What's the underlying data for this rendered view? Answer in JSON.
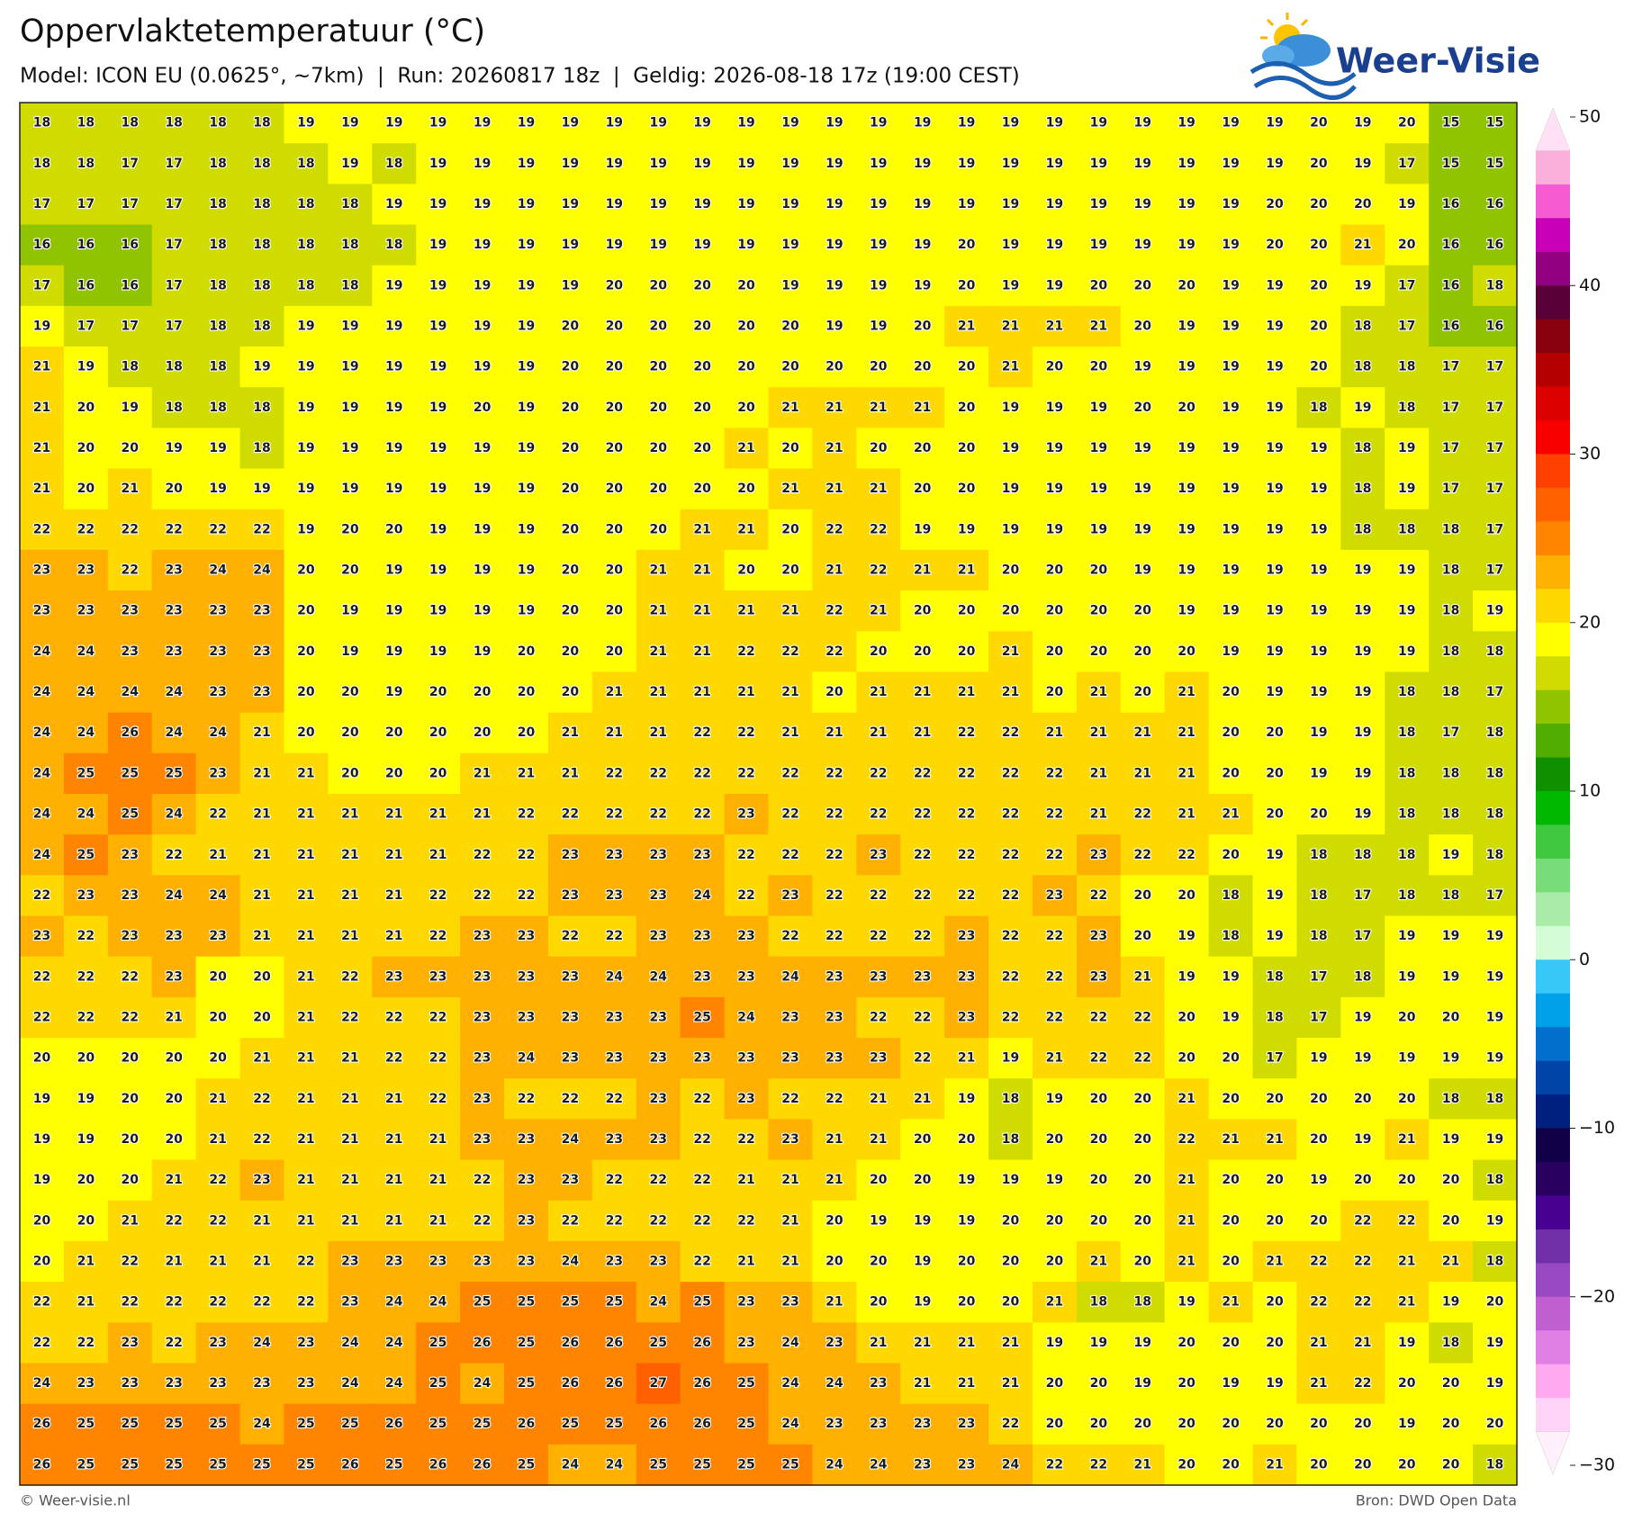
{
  "header": {
    "title": "Oppervlaktetemperatuur (°C)",
    "subtitle": "Model: ICON EU (0.0625°, ~7km)  |  Run: 20260817 18z  |  Geldig: 2026-08-18 17z (19:00 CEST)"
  },
  "logo": "Weer-Visie",
  "map": {
    "grid": [
      [
        18,
        18,
        18,
        18,
        18,
        18,
        19,
        19,
        19,
        19,
        19,
        19,
        19,
        19,
        19,
        19,
        19,
        19,
        19,
        19,
        19,
        19,
        19,
        19,
        19,
        19,
        19,
        19,
        19,
        20,
        19,
        20,
        15,
        15
      ],
      [
        18,
        18,
        17,
        17,
        18,
        18,
        18,
        19,
        18,
        19,
        19,
        19,
        19,
        19,
        19,
        19,
        19,
        19,
        19,
        19,
        19,
        19,
        19,
        19,
        19,
        19,
        19,
        19,
        19,
        20,
        19,
        17,
        15,
        15
      ],
      [
        17,
        17,
        17,
        17,
        18,
        18,
        18,
        18,
        19,
        19,
        19,
        19,
        19,
        19,
        19,
        19,
        19,
        19,
        19,
        19,
        19,
        19,
        19,
        19,
        19,
        19,
        19,
        19,
        20,
        20,
        20,
        19,
        16,
        16
      ],
      [
        16,
        16,
        16,
        17,
        18,
        18,
        18,
        18,
        18,
        19,
        19,
        19,
        19,
        19,
        19,
        19,
        19,
        19,
        19,
        19,
        19,
        20,
        19,
        19,
        19,
        19,
        19,
        19,
        20,
        20,
        21,
        20,
        16,
        16
      ],
      [
        17,
        16,
        16,
        17,
        18,
        18,
        18,
        18,
        19,
        19,
        19,
        19,
        19,
        20,
        20,
        20,
        20,
        19,
        19,
        19,
        19,
        20,
        19,
        19,
        20,
        20,
        20,
        19,
        19,
        20,
        19,
        17,
        16,
        18
      ],
      [
        19,
        17,
        17,
        17,
        18,
        18,
        19,
        19,
        19,
        19,
        19,
        19,
        20,
        20,
        20,
        20,
        20,
        20,
        19,
        19,
        20,
        21,
        21,
        21,
        21,
        20,
        19,
        19,
        19,
        20,
        18,
        17,
        16,
        16
      ],
      [
        21,
        19,
        18,
        18,
        18,
        19,
        19,
        19,
        19,
        19,
        19,
        19,
        20,
        20,
        20,
        20,
        20,
        20,
        20,
        20,
        20,
        20,
        21,
        20,
        20,
        19,
        19,
        19,
        19,
        20,
        18,
        18,
        17,
        17
      ],
      [
        21,
        20,
        19,
        18,
        18,
        18,
        19,
        19,
        19,
        19,
        20,
        19,
        20,
        20,
        20,
        20,
        20,
        21,
        21,
        21,
        21,
        20,
        19,
        19,
        19,
        20,
        20,
        19,
        19,
        18,
        19,
        18,
        17,
        17
      ],
      [
        21,
        20,
        20,
        19,
        19,
        18,
        19,
        19,
        19,
        19,
        19,
        19,
        20,
        20,
        20,
        20,
        21,
        20,
        21,
        20,
        20,
        20,
        19,
        19,
        19,
        19,
        19,
        19,
        19,
        19,
        18,
        19,
        17,
        17
      ],
      [
        21,
        20,
        21,
        20,
        19,
        19,
        19,
        19,
        19,
        19,
        19,
        19,
        20,
        20,
        20,
        20,
        20,
        21,
        21,
        21,
        20,
        20,
        19,
        19,
        19,
        19,
        19,
        19,
        19,
        19,
        18,
        19,
        17,
        17
      ],
      [
        22,
        22,
        22,
        22,
        22,
        22,
        19,
        20,
        20,
        19,
        19,
        19,
        20,
        20,
        20,
        21,
        21,
        20,
        22,
        22,
        19,
        19,
        19,
        19,
        19,
        19,
        19,
        19,
        19,
        19,
        18,
        18,
        18,
        17
      ],
      [
        23,
        23,
        22,
        23,
        24,
        24,
        20,
        20,
        19,
        19,
        19,
        19,
        20,
        20,
        21,
        21,
        20,
        20,
        21,
        22,
        21,
        21,
        20,
        20,
        20,
        19,
        19,
        19,
        19,
        19,
        19,
        19,
        18,
        17
      ],
      [
        23,
        23,
        23,
        23,
        23,
        23,
        20,
        19,
        19,
        19,
        19,
        19,
        20,
        20,
        21,
        21,
        21,
        21,
        22,
        21,
        20,
        20,
        20,
        20,
        20,
        20,
        19,
        19,
        19,
        19,
        19,
        19,
        18,
        19
      ],
      [
        24,
        24,
        23,
        23,
        23,
        23,
        20,
        19,
        19,
        19,
        19,
        20,
        20,
        20,
        21,
        21,
        22,
        22,
        22,
        20,
        20,
        20,
        21,
        20,
        20,
        20,
        20,
        19,
        19,
        19,
        19,
        19,
        18,
        18
      ],
      [
        24,
        24,
        24,
        24,
        23,
        23,
        20,
        20,
        19,
        20,
        20,
        20,
        20,
        21,
        21,
        21,
        21,
        21,
        20,
        21,
        21,
        21,
        21,
        20,
        21,
        20,
        21,
        20,
        19,
        19,
        19,
        18,
        18,
        17
      ],
      [
        24,
        24,
        26,
        24,
        24,
        21,
        20,
        20,
        20,
        20,
        20,
        20,
        21,
        21,
        21,
        22,
        22,
        21,
        21,
        21,
        21,
        22,
        22,
        21,
        21,
        21,
        21,
        20,
        20,
        19,
        19,
        18,
        17,
        18
      ],
      [
        24,
        25,
        25,
        25,
        23,
        21,
        21,
        20,
        20,
        20,
        21,
        21,
        21,
        22,
        22,
        22,
        22,
        22,
        22,
        22,
        22,
        22,
        22,
        22,
        21,
        21,
        21,
        20,
        20,
        19,
        19,
        18,
        18,
        18
      ],
      [
        24,
        24,
        25,
        24,
        22,
        21,
        21,
        21,
        21,
        21,
        21,
        22,
        22,
        22,
        22,
        22,
        23,
        22,
        22,
        22,
        22,
        22,
        22,
        22,
        21,
        22,
        21,
        21,
        20,
        20,
        19,
        18,
        18,
        18
      ],
      [
        24,
        25,
        23,
        22,
        21,
        21,
        21,
        21,
        21,
        21,
        22,
        22,
        23,
        23,
        23,
        23,
        22,
        22,
        22,
        23,
        22,
        22,
        22,
        22,
        23,
        22,
        22,
        20,
        19,
        18,
        18,
        18,
        19,
        18
      ],
      [
        22,
        23,
        23,
        24,
        24,
        21,
        21,
        21,
        21,
        22,
        22,
        22,
        23,
        23,
        23,
        24,
        22,
        23,
        22,
        22,
        22,
        22,
        22,
        23,
        22,
        20,
        20,
        18,
        19,
        18,
        17,
        18,
        18,
        17
      ],
      [
        23,
        22,
        23,
        23,
        23,
        21,
        21,
        21,
        21,
        22,
        23,
        23,
        22,
        22,
        23,
        23,
        23,
        22,
        22,
        22,
        22,
        23,
        22,
        22,
        23,
        20,
        19,
        18,
        19,
        18,
        17,
        19,
        19,
        19
      ],
      [
        22,
        22,
        22,
        23,
        20,
        20,
        21,
        22,
        23,
        23,
        23,
        23,
        23,
        24,
        24,
        23,
        23,
        24,
        23,
        23,
        23,
        23,
        22,
        22,
        23,
        21,
        19,
        19,
        18,
        17,
        18,
        19,
        19,
        19
      ],
      [
        22,
        22,
        22,
        21,
        20,
        20,
        21,
        22,
        22,
        22,
        23,
        23,
        23,
        23,
        23,
        25,
        24,
        23,
        23,
        22,
        22,
        23,
        22,
        22,
        22,
        22,
        20,
        19,
        18,
        17,
        19,
        20,
        20,
        19
      ],
      [
        20,
        20,
        20,
        20,
        20,
        21,
        21,
        21,
        22,
        22,
        23,
        24,
        23,
        23,
        23,
        23,
        23,
        23,
        23,
        23,
        22,
        21,
        19,
        21,
        22,
        22,
        20,
        20,
        17,
        19,
        19,
        19,
        19,
        19
      ],
      [
        19,
        19,
        20,
        20,
        21,
        22,
        21,
        21,
        21,
        22,
        23,
        22,
        22,
        22,
        23,
        22,
        23,
        22,
        22,
        21,
        21,
        19,
        18,
        19,
        20,
        20,
        21,
        20,
        20,
        20,
        20,
        20,
        18,
        18
      ],
      [
        19,
        19,
        20,
        20,
        21,
        22,
        21,
        21,
        21,
        21,
        23,
        23,
        24,
        23,
        23,
        22,
        22,
        23,
        21,
        21,
        20,
        20,
        18,
        20,
        20,
        20,
        22,
        21,
        21,
        20,
        19,
        21,
        19,
        19
      ],
      [
        19,
        20,
        20,
        21,
        22,
        23,
        21,
        21,
        21,
        21,
        22,
        23,
        23,
        22,
        22,
        22,
        21,
        21,
        21,
        20,
        20,
        19,
        19,
        19,
        20,
        20,
        21,
        20,
        20,
        19,
        20,
        20,
        20,
        18
      ],
      [
        20,
        20,
        21,
        22,
        22,
        21,
        21,
        21,
        21,
        21,
        22,
        23,
        22,
        22,
        22,
        22,
        22,
        21,
        20,
        19,
        19,
        19,
        20,
        20,
        20,
        20,
        21,
        20,
        20,
        20,
        22,
        22,
        20,
        19
      ],
      [
        20,
        21,
        22,
        21,
        21,
        21,
        22,
        23,
        23,
        23,
        23,
        23,
        24,
        23,
        23,
        22,
        21,
        21,
        20,
        20,
        19,
        20,
        20,
        20,
        21,
        20,
        21,
        20,
        21,
        22,
        22,
        21,
        21,
        18
      ],
      [
        22,
        21,
        22,
        22,
        22,
        22,
        22,
        23,
        24,
        24,
        25,
        25,
        25,
        25,
        24,
        25,
        23,
        23,
        21,
        20,
        19,
        20,
        20,
        21,
        18,
        18,
        19,
        21,
        20,
        22,
        22,
        21,
        19,
        20
      ],
      [
        22,
        22,
        23,
        22,
        23,
        24,
        23,
        24,
        24,
        25,
        26,
        25,
        26,
        26,
        25,
        26,
        23,
        24,
        23,
        21,
        21,
        21,
        21,
        19,
        19,
        19,
        20,
        20,
        20,
        21,
        21,
        19,
        18,
        19
      ],
      [
        24,
        23,
        23,
        23,
        23,
        23,
        23,
        24,
        24,
        25,
        24,
        25,
        26,
        26,
        27,
        26,
        25,
        24,
        24,
        23,
        21,
        21,
        21,
        20,
        20,
        19,
        20,
        19,
        19,
        21,
        22,
        20,
        20,
        19
      ],
      [
        26,
        25,
        25,
        25,
        25,
        24,
        25,
        25,
        26,
        25,
        25,
        26,
        25,
        25,
        26,
        26,
        25,
        24,
        23,
        23,
        23,
        23,
        22,
        20,
        20,
        20,
        20,
        20,
        20,
        20,
        20,
        19,
        20,
        20
      ],
      [
        26,
        25,
        25,
        25,
        25,
        25,
        25,
        26,
        25,
        26,
        26,
        25,
        24,
        24,
        25,
        25,
        25,
        25,
        24,
        24,
        23,
        23,
        24,
        22,
        22,
        21,
        20,
        20,
        21,
        20,
        20,
        20,
        20,
        18
      ]
    ],
    "colorbar": {
      "lim": [
        -30,
        50
      ],
      "ticks": [
        50,
        40,
        30,
        20,
        10,
        0,
        {
          "value": -10,
          "label": "−10"
        },
        {
          "value": -20,
          "label": "−20"
        },
        {
          "value": -30,
          "label": "−30"
        }
      ],
      "colors": [
        "#ffe0f4",
        "#fbb0dc",
        "#f65cd2",
        "#c800b8",
        "#900080",
        "#5a0038",
        "#880010",
        "#b40000",
        "#dc0000",
        "#f80000",
        "#ff4000",
        "#ff6000",
        "#ff8400",
        "#ffb000",
        "#ffd800",
        "#ffff00",
        "#d0dc00",
        "#90c400",
        "#50ac00",
        "#109000",
        "#00b800",
        "#40c840",
        "#78dc78",
        "#a8eca8",
        "#d4fcd4",
        "#38c8f8",
        "#00a0e8",
        "#0070cc",
        "#0044a8",
        "#002080",
        "#100048",
        "#280060",
        "#480090",
        "#7030a8",
        "#9848c0",
        "#c060d0",
        "#e080e4",
        "#ffaaf0",
        "#ffd4f8",
        "#fff0fc"
      ]
    }
  },
  "footer": {
    "left": "© Weer-visie.nl",
    "right": "Bron: DWD Open Data"
  }
}
